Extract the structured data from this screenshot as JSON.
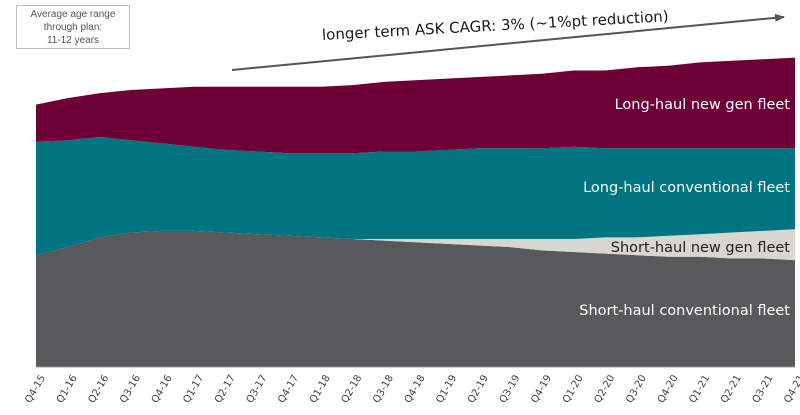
{
  "note": {
    "lines": [
      "Average age range",
      "through plan:",
      "11-12 years"
    ]
  },
  "trend": {
    "label": "longer term ASK CAGR: 3% (~1%pt reduction)"
  },
  "chart_data": {
    "type": "area",
    "stacked": true,
    "categories": [
      "Q4-15",
      "Q1-16",
      "Q2-16",
      "Q3-16",
      "Q4-16",
      "Q1-17",
      "Q2-17",
      "Q3-17",
      "Q4-17",
      "Q1-18",
      "Q2-18",
      "Q3-18",
      "Q4-18",
      "Q1-19",
      "Q2-19",
      "Q3-19",
      "Q4-19",
      "Q1-20",
      "Q2-20",
      "Q3-20",
      "Q4-20",
      "Q1-21",
      "Q2-21",
      "Q3-21",
      "Q4-21"
    ],
    "ylim": [
      0,
      100
    ],
    "grid": false,
    "legend": "none",
    "series": [
      {
        "name": "Short-haul conventional fleet",
        "color": "#58595b",
        "values": [
          34.5,
          37,
          40,
          41.5,
          42,
          42,
          41.5,
          41,
          40.5,
          40,
          39.5,
          39,
          38.5,
          38,
          37.5,
          37,
          36,
          35.5,
          35,
          34.5,
          34,
          34,
          33.5,
          33.5,
          33
        ]
      },
      {
        "name": "Short-haul new gen fleet",
        "color": "#d9d6cf",
        "values": [
          0,
          0,
          0,
          0,
          0,
          0,
          0,
          0,
          0,
          0,
          0,
          0.5,
          1,
          1.5,
          2,
          2.5,
          3.5,
          4,
          5,
          5.5,
          6.5,
          7,
          8,
          8.5,
          9.5
        ]
      },
      {
        "name": "Long-haul conventional fleet",
        "color": "#007481",
        "values": [
          35,
          33,
          31,
          28.5,
          27,
          26,
          25.5,
          25.5,
          25.5,
          26,
          26.5,
          27,
          27,
          27.5,
          28,
          28,
          28,
          28.5,
          27.5,
          27.5,
          27,
          26.5,
          26,
          25.5,
          25
        ]
      },
      {
        "name": "Long-haul new gen fleet",
        "color": "#6e0037",
        "values": [
          11.5,
          13,
          13.5,
          15.5,
          17,
          18.5,
          19.5,
          20,
          20.5,
          20.5,
          21,
          21.5,
          22,
          22,
          22,
          22.5,
          23,
          23.5,
          24,
          25,
          25.5,
          26.5,
          27,
          27.5,
          28
        ]
      }
    ]
  }
}
